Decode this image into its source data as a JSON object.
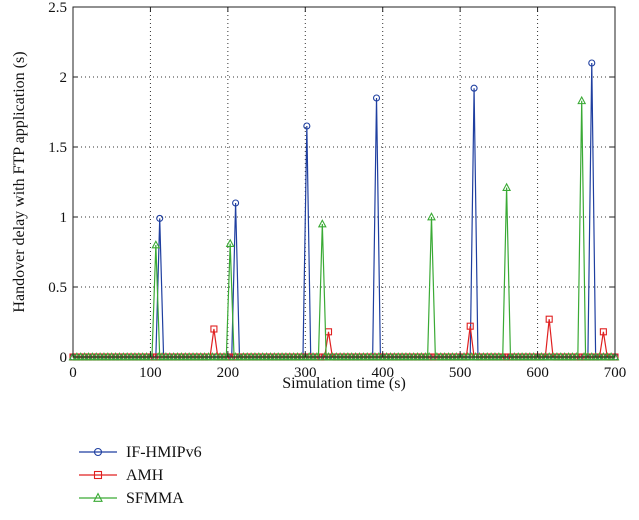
{
  "chart_data": {
    "type": "line",
    "xlabel": "Simulation time (s)",
    "ylabel": "Handover delay with FTP application (s)",
    "xlim": [
      0,
      700
    ],
    "ylim": [
      0,
      2.5
    ],
    "xticks": [
      0,
      100,
      200,
      300,
      400,
      500,
      600,
      700
    ],
    "yticks": [
      0,
      0.5,
      1,
      1.5,
      2,
      2.5
    ],
    "xtick_labels": [
      "0",
      "100",
      "200",
      "300",
      "400",
      "500",
      "600",
      "700"
    ],
    "ytick_labels": [
      "0",
      "0.5",
      "1",
      "1.5",
      "2",
      "2.5"
    ],
    "grid": true,
    "legend_position": "below",
    "baseline_marker_spacing": 5,
    "series": [
      {
        "name": "IF-HMIPv6",
        "color": "#1f3fa0",
        "marker": "circle",
        "spikes": [
          {
            "x": 112,
            "y": 0.99
          },
          {
            "x": 210,
            "y": 1.1
          },
          {
            "x": 302,
            "y": 1.65
          },
          {
            "x": 392,
            "y": 1.85
          },
          {
            "x": 518,
            "y": 1.92
          },
          {
            "x": 670,
            "y": 2.1
          }
        ]
      },
      {
        "name": "AMH",
        "color": "#e02020",
        "marker": "square",
        "spikes": [
          {
            "x": 182,
            "y": 0.2
          },
          {
            "x": 330,
            "y": 0.18
          },
          {
            "x": 513,
            "y": 0.22
          },
          {
            "x": 615,
            "y": 0.27
          },
          {
            "x": 685,
            "y": 0.18
          }
        ]
      },
      {
        "name": "SFMMA",
        "color": "#3aaa35",
        "marker": "triangle",
        "spikes": [
          {
            "x": 107,
            "y": 0.8
          },
          {
            "x": 203,
            "y": 0.81
          },
          {
            "x": 322,
            "y": 0.95
          },
          {
            "x": 463,
            "y": 1.0
          },
          {
            "x": 560,
            "y": 1.21
          },
          {
            "x": 657,
            "y": 1.83
          }
        ]
      }
    ]
  }
}
